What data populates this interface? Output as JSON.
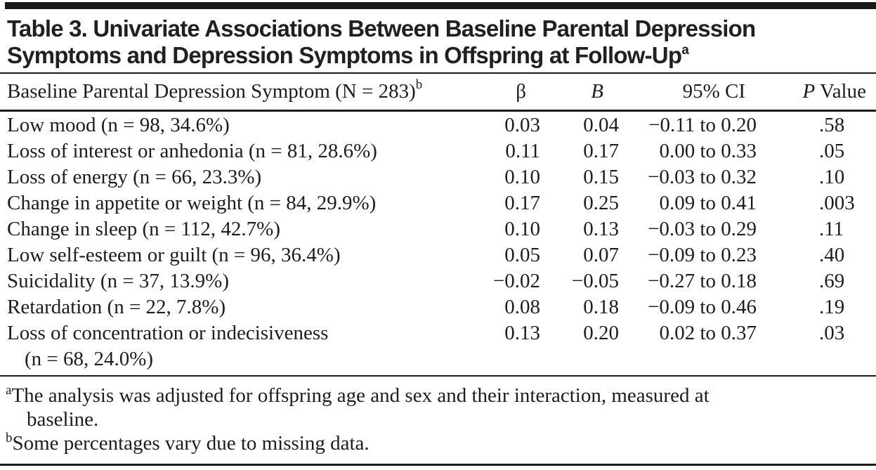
{
  "title": {
    "line1": "Table 3. Univariate Associations Between Baseline Parental Depression",
    "line2": "Symptoms and Depression Symptoms in Offspring at Follow-Up",
    "superscript": "a"
  },
  "table": {
    "header": {
      "symptom_label": "Baseline Parental Depression Symptom (N = 283)",
      "symptom_superscript": "b",
      "beta_label": "β",
      "b_label": "B",
      "ci_label": "95% CI",
      "p_label_italic": "P",
      "p_label_rest": " Value"
    },
    "rows": [
      {
        "symptom": "Low mood (n = 98, 34.6%)",
        "beta": "0.03",
        "b": "0.04",
        "ci": "−0.11 to 0.20",
        "p": ".58"
      },
      {
        "symptom": "Loss of interest or anhedonia (n = 81, 28.6%)",
        "beta": "0.11",
        "b": "0.17",
        "ci": "0.00 to 0.33",
        "p": ".05"
      },
      {
        "symptom": "Loss of energy (n = 66, 23.3%)",
        "beta": "0.10",
        "b": "0.15",
        "ci": "−0.03 to 0.32",
        "p": ".10"
      },
      {
        "symptom": "Change in appetite or weight (n = 84, 29.9%)",
        "beta": "0.17",
        "b": "0.25",
        "ci": "0.09 to 0.41",
        "p": ".003"
      },
      {
        "symptom": "Change in sleep (n = 112, 42.7%)",
        "beta": "0.10",
        "b": "0.13",
        "ci": "−0.03 to 0.29",
        "p": ".11"
      },
      {
        "symptom": "Low self-esteem or guilt (n = 96, 36.4%)",
        "beta": "0.05",
        "b": "0.07",
        "ci": "−0.09 to 0.23",
        "p": ".40"
      },
      {
        "symptom": "Suicidality (n = 37, 13.9%)",
        "beta": "−0.02",
        "b": "−0.05",
        "ci": "−0.27 to 0.18",
        "p": ".69"
      },
      {
        "symptom": "Retardation (n = 22, 7.8%)",
        "beta": "0.08",
        "b": "0.18",
        "ci": "−0.09 to 0.46",
        "p": ".19"
      },
      {
        "symptom": "Loss of concentration or indecisiveness",
        "symptom_line2": "(n = 68, 24.0%)",
        "beta": "0.13",
        "b": "0.20",
        "ci": "0.02 to 0.37",
        "p": ".03"
      }
    ]
  },
  "footnotes": [
    {
      "sup": "a",
      "line1": "The analysis was adjusted for offspring age and sex and their interaction, measured at",
      "line2": "baseline."
    },
    {
      "sup": "b",
      "line1": "Some percentages vary due to missing data."
    }
  ],
  "colors": {
    "text": "#1d1d1b",
    "rule": "#1a1a1a",
    "background": "#ffffff"
  }
}
